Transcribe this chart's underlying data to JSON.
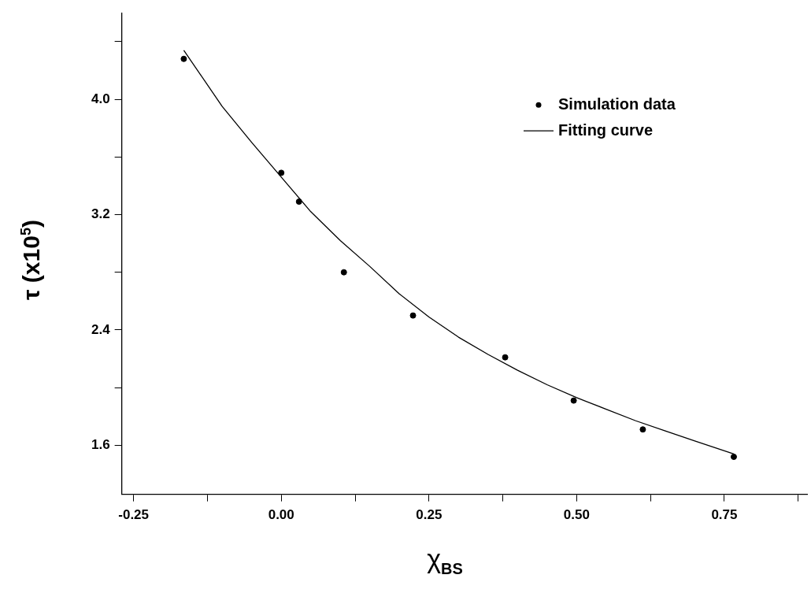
{
  "chart_data": {
    "type": "scatter",
    "xlabel": "χ$_{BS}$",
    "ylabel": "τ  (x10$^{5}$)",
    "xlim": [
      -0.27,
      0.89
    ],
    "ylim": [
      1.26,
      4.6
    ],
    "xticks": [
      -0.25,
      {
        "value": -0.125,
        "label": null
      },
      {
        "value": 0,
        "label": "0.00"
      },
      {
        "value": 0.125,
        "label": null
      },
      0.25,
      {
        "value": 0.375,
        "label": null
      },
      {
        "value": 0.5,
        "label": "0.50"
      },
      {
        "value": 0.625,
        "label": null
      },
      0.75,
      {
        "value": 0.875,
        "label": null
      }
    ],
    "yticks": [
      1.6,
      {
        "value": 2.0,
        "label": null
      },
      2.4,
      {
        "value": 2.8,
        "label": null
      },
      3.2,
      {
        "value": 3.6,
        "label": null
      },
      {
        "value": 4.0,
        "label": "4.0"
      },
      {
        "value": 4.4,
        "label": null
      }
    ],
    "legend": "top right",
    "grid": false,
    "series": [
      {
        "name": "Simulation data",
        "marker": "circle",
        "color": "#000000",
        "x": [
          -0.165,
          0.0,
          0.03,
          0.106,
          0.223,
          0.379,
          0.495,
          0.612,
          0.766
        ],
        "values": [
          4.28,
          3.49,
          3.29,
          2.8,
          2.5,
          2.21,
          1.91,
          1.71,
          1.52
        ]
      },
      {
        "name": "Fitting curve",
        "type": "line",
        "marker": "none",
        "line_style": "solid",
        "color": "#000000",
        "x": [
          -0.165,
          -0.1,
          -0.05,
          0,
          0.05,
          0.1,
          0.15,
          0.2,
          0.25,
          0.3,
          0.35,
          0.4,
          0.45,
          0.5,
          0.55,
          0.6,
          0.65,
          0.7,
          0.766
        ],
        "values": [
          4.34,
          3.95,
          3.7,
          3.46,
          3.22,
          3.02,
          2.84,
          2.65,
          2.49,
          2.35,
          2.23,
          2.12,
          2.02,
          1.93,
          1.85,
          1.77,
          1.7,
          1.63,
          1.54
        ]
      }
    ]
  }
}
